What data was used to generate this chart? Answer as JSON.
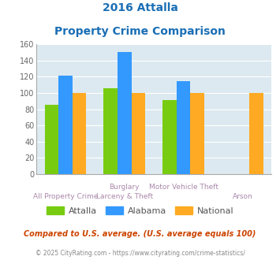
{
  "title_line1": "2016 Attalla",
  "title_line2": "Property Crime Comparison",
  "series": {
    "Attalla": [
      85,
      106,
      91,
      null
    ],
    "Alabama": [
      121,
      150,
      115,
      null
    ],
    "National": [
      100,
      100,
      100,
      100
    ]
  },
  "colors": {
    "Attalla": "#77cc11",
    "Alabama": "#3399ff",
    "National": "#ffaa22"
  },
  "ylim": [
    0,
    160
  ],
  "yticks": [
    0,
    20,
    40,
    60,
    80,
    100,
    120,
    140,
    160
  ],
  "title_color": "#1a6eb5",
  "background_color": "#dce9f0",
  "top_labels": [
    "",
    "Burglary",
    "Motor Vehicle Theft",
    ""
  ],
  "bot_labels": [
    "All Property Crime",
    "Larceny & Theft",
    "",
    "Arson"
  ],
  "footer_text": "Compared to U.S. average. (U.S. average equals 100)",
  "copyright_text": "© 2025 CityRating.com - https://www.cityrating.com/crime-statistics/",
  "footer_color": "#cc4400",
  "copyright_color": "#888888",
  "xlabel_color": "#aa88aa",
  "grid_color": "#c8d8e0"
}
